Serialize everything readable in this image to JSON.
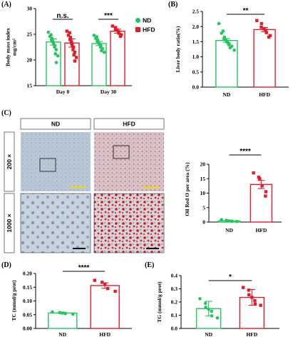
{
  "colors": {
    "nd": "#22c55e",
    "hfd": "#e11d2a",
    "scale_bar": "#f2d600",
    "scale_bar_black": "#111111"
  },
  "panel_labels": [
    "(A)",
    "(B)",
    "(C)",
    "(D)",
    "(E)"
  ],
  "legend": {
    "nd": "ND",
    "hfd": "HFD"
  },
  "histology": {
    "col_headers": [
      "ND",
      "HFD"
    ],
    "row_labels": [
      "200 ×",
      "1000 ×"
    ]
  },
  "chart_data": [
    {
      "id": "A",
      "type": "bar",
      "ylabel": "Body mass index mg/cm²",
      "ylabel_lines": [
        "Body mass index",
        "mg/cm²"
      ],
      "yticks": [
        15,
        20,
        25,
        30
      ],
      "ylim": [
        15,
        30
      ],
      "categories": [
        "Day 0",
        "Day 30"
      ],
      "series": [
        {
          "name": "ND",
          "values": [
            23.5,
            23.2
          ],
          "errors": [
            0.6,
            0.4
          ],
          "points": [
            [
              25.4,
              24.9,
              24.6,
              24.2,
              23.9,
              23.6,
              23.4,
              23.1,
              22.8,
              22.5,
              22.0,
              21.2,
              20.8,
              19.5
            ],
            [
              24.8,
              24.5,
              24.2,
              23.9,
              23.6,
              23.4,
              23.2,
              23.0,
              22.8,
              22.5,
              22.2,
              21.8,
              21.5
            ]
          ]
        },
        {
          "name": "HFD",
          "values": [
            23.3,
            25.6
          ],
          "errors": [
            0.8,
            0.4
          ],
          "points": [
            [
              25.6,
              25.3,
              24.8,
              24.4,
              24.0,
              23.5,
              23.2,
              22.9,
              22.5,
              22.0,
              21.5,
              21.0,
              20.5,
              19.8
            ],
            [
              26.6,
              26.3,
              26.0,
              25.8,
              25.5,
              25.2,
              24.9,
              24.6
            ]
          ]
        }
      ],
      "significance": [
        "n.s.",
        "***"
      ]
    },
    {
      "id": "B",
      "type": "bar",
      "ylabel": "Liver body ratio(%)",
      "yticks": [
        0.0,
        0.5,
        1.0,
        1.5,
        2.0,
        2.5
      ],
      "ylim": [
        0,
        2.5
      ],
      "categories": [
        "ND",
        "HFD"
      ],
      "values": [
        1.54,
        1.9
      ],
      "errors": [
        0.06,
        0.07
      ],
      "points": [
        [
          2.1,
          1.85,
          1.78,
          1.65,
          1.6,
          1.55,
          1.52,
          1.48,
          1.43,
          1.4,
          1.35,
          1.3,
          1.22
        ],
        [
          2.2,
          2.1,
          1.98,
          1.92,
          1.88,
          1.8,
          1.7,
          1.65
        ]
      ],
      "significance": "**"
    },
    {
      "id": "C",
      "type": "bar",
      "ylabel": "Oil Red O per area (%)",
      "yticks": [
        0,
        5,
        10,
        15,
        20
      ],
      "ylim": [
        0,
        20
      ],
      "categories": [
        "ND",
        "HFD"
      ],
      "values": [
        0.4,
        13.0
      ],
      "errors": [
        0.1,
        1.4
      ],
      "points": [
        [
          0.8,
          0.6,
          0.5,
          0.4,
          0.3,
          0.25,
          0.2
        ],
        [
          17.0,
          15.5,
          15.0,
          12.5,
          10.5,
          9.0
        ]
      ],
      "significance": "****"
    },
    {
      "id": "D",
      "type": "bar",
      "ylabel": "TC (mmol/g prot)",
      "yticks": [
        0.0,
        0.05,
        0.1,
        0.15,
        0.2
      ],
      "ylim": [
        0,
        0.2
      ],
      "categories": [
        "ND",
        "HFD"
      ],
      "values": [
        0.056,
        0.156
      ],
      "errors": [
        0.003,
        0.01
      ],
      "points": [
        [
          0.06,
          0.058,
          0.056,
          0.054,
          0.052
        ],
        [
          0.175,
          0.168,
          0.16,
          0.145,
          0.135
        ]
      ],
      "significance": "****"
    },
    {
      "id": "E",
      "type": "bar",
      "ylabel": "TG (mmol/g prot)",
      "yticks": [
        0.0,
        0.1,
        0.2,
        0.3,
        0.4
      ],
      "ylim": [
        0,
        0.4
      ],
      "categories": [
        "ND",
        "HFD"
      ],
      "values": [
        0.15,
        0.235
      ],
      "errors": [
        0.055,
        0.06
      ],
      "points": [
        [
          0.225,
          0.19,
          0.16,
          0.145,
          0.13,
          0.095,
          0.08
        ],
        [
          0.31,
          0.29,
          0.255,
          0.235,
          0.21,
          0.185,
          0.175
        ]
      ],
      "significance": "*"
    }
  ]
}
